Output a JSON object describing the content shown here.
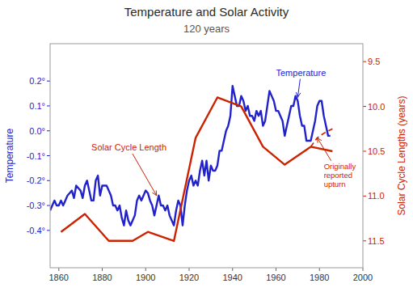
{
  "chart_data": {
    "type": "line",
    "title": "Temperature and Solar Activity",
    "subtitle": "120 years",
    "ylabel": "Temperature",
    "y2label": "Solar Cycle Lengths (years)",
    "xlim": [
      1856,
      2000
    ],
    "xticks": [
      1860,
      1880,
      1900,
      1920,
      1940,
      1960,
      1980,
      2000
    ],
    "ylim": [
      -0.55,
      0.35
    ],
    "yticks": [
      {
        "value": -0.4,
        "label": "-0.4°"
      },
      {
        "value": -0.3,
        "label": "-0.3°"
      },
      {
        "value": -0.2,
        "label": "-0.2°"
      },
      {
        "value": -0.1,
        "label": "-0.1°"
      },
      {
        "value": 0.0,
        "label": "0.0°"
      },
      {
        "value": 0.1,
        "label": "0.1°"
      },
      {
        "value": 0.2,
        "label": "0.2°"
      }
    ],
    "y2lim": [
      11.8,
      9.3
    ],
    "y2ticks": [
      9.5,
      {
        "value": 10.0,
        "label": "10.0"
      },
      10.5,
      {
        "value": 11.0,
        "label": "11.0"
      },
      11.5
    ],
    "grid": false,
    "series": [
      {
        "color": "#2222cc",
        "x": [
          1856,
          1857,
          1858,
          1859,
          1860,
          1861,
          1862,
          1863,
          1864,
          1865,
          1866,
          1867,
          1868,
          1869,
          1870,
          1871,
          1872,
          1873,
          1874,
          1875,
          1876,
          1877,
          1878,
          1879,
          1880,
          1881,
          1882,
          1883,
          1884,
          1885,
          1886,
          1887,
          1888,
          1889,
          1890,
          1891,
          1892,
          1893,
          1894,
          1895,
          1896,
          1897,
          1898,
          1899,
          1900,
          1901,
          1902,
          1903,
          1904,
          1905,
          1906,
          1907,
          1908,
          1909,
          1910,
          1911,
          1912,
          1913,
          1914,
          1915,
          1916,
          1917,
          1918,
          1919,
          1920,
          1921,
          1922,
          1923,
          1924,
          1925,
          1926,
          1927,
          1928,
          1929,
          1930,
          1931,
          1932,
          1933,
          1934,
          1935,
          1936,
          1937,
          1938,
          1939,
          1940,
          1941,
          1942,
          1943,
          1944,
          1945,
          1946,
          1947,
          1948,
          1949,
          1950,
          1951,
          1952,
          1953,
          1954,
          1955,
          1956,
          1957,
          1958,
          1959,
          1960,
          1961,
          1962,
          1963,
          1964,
          1965,
          1966,
          1967,
          1968,
          1969,
          1970,
          1971,
          1972,
          1973,
          1974,
          1975,
          1976,
          1977,
          1978,
          1979,
          1980,
          1981,
          1982,
          1983,
          1984,
          1985
        ],
        "values": [
          -0.32,
          -0.3,
          -0.28,
          -0.3,
          -0.3,
          -0.28,
          -0.3,
          -0.28,
          -0.26,
          -0.25,
          -0.24,
          -0.27,
          -0.22,
          -0.23,
          -0.24,
          -0.27,
          -0.22,
          -0.2,
          -0.24,
          -0.28,
          -0.28,
          -0.2,
          -0.18,
          -0.26,
          -0.22,
          -0.22,
          -0.22,
          -0.24,
          -0.26,
          -0.3,
          -0.3,
          -0.32,
          -0.3,
          -0.35,
          -0.38,
          -0.32,
          -0.36,
          -0.38,
          -0.36,
          -0.34,
          -0.28,
          -0.26,
          -0.28,
          -0.26,
          -0.24,
          -0.25,
          -0.28,
          -0.3,
          -0.34,
          -0.3,
          -0.26,
          -0.3,
          -0.3,
          -0.32,
          -0.3,
          -0.34,
          -0.36,
          -0.38,
          -0.32,
          -0.28,
          -0.3,
          -0.38,
          -0.3,
          -0.24,
          -0.2,
          -0.18,
          -0.22,
          -0.2,
          -0.22,
          -0.16,
          -0.12,
          -0.18,
          -0.12,
          -0.2,
          -0.14,
          -0.16,
          -0.16,
          -0.14,
          -0.08,
          -0.08,
          -0.04,
          0.0,
          0.02,
          0.06,
          0.18,
          0.14,
          0.1,
          0.1,
          0.14,
          0.12,
          0.08,
          0.1,
          0.06,
          0.06,
          0.04,
          0.08,
          0.06,
          0.08,
          0.02,
          0.04,
          0.1,
          0.16,
          0.14,
          0.12,
          0.08,
          0.08,
          0.06,
          0.04,
          -0.02,
          0.02,
          0.06,
          0.1,
          0.1,
          0.14,
          0.12,
          0.06,
          0.02,
          0.02,
          -0.04,
          -0.04,
          -0.04,
          0.0,
          0.04,
          0.1,
          0.12,
          0.12,
          0.06,
          0.02,
          -0.02,
          -0.02
        ]
      },
      {
        "color": "#cc2200",
        "axis": "y2",
        "x": [
          1861,
          1872,
          1883,
          1894,
          1901,
          1913,
          1923,
          1933,
          1944,
          1954,
          1964,
          1976,
          1986
        ],
        "values": [
          11.4,
          11.2,
          11.5,
          11.5,
          11.4,
          11.5,
          10.35,
          9.9,
          10.0,
          10.45,
          10.65,
          10.45,
          10.5
        ]
      },
      {
        "color": "#cc2200",
        "axis": "y2",
        "line_style": "dashed",
        "x": [
          1976,
          1979,
          1982,
          1986
        ],
        "values": [
          10.45,
          10.35,
          10.3,
          10.25
        ]
      }
    ],
    "annotations": [
      {
        "text": "Temperature",
        "x": 1970,
        "y": 0.135,
        "text_x": 1960,
        "text_y": 0.22,
        "color": "#2222cc"
      },
      {
        "text": "Solar Cycle Length",
        "x": 1905,
        "y": -0.26,
        "text_x": 1875,
        "text_y": -0.08,
        "color": "#cc2200"
      },
      {
        "text": "Originally\nreported\nupturn",
        "x": 1979,
        "y": 10.35,
        "text_x": 1982,
        "text_y": 10.9,
        "color": "#cc2200",
        "axis": "y2"
      }
    ]
  }
}
